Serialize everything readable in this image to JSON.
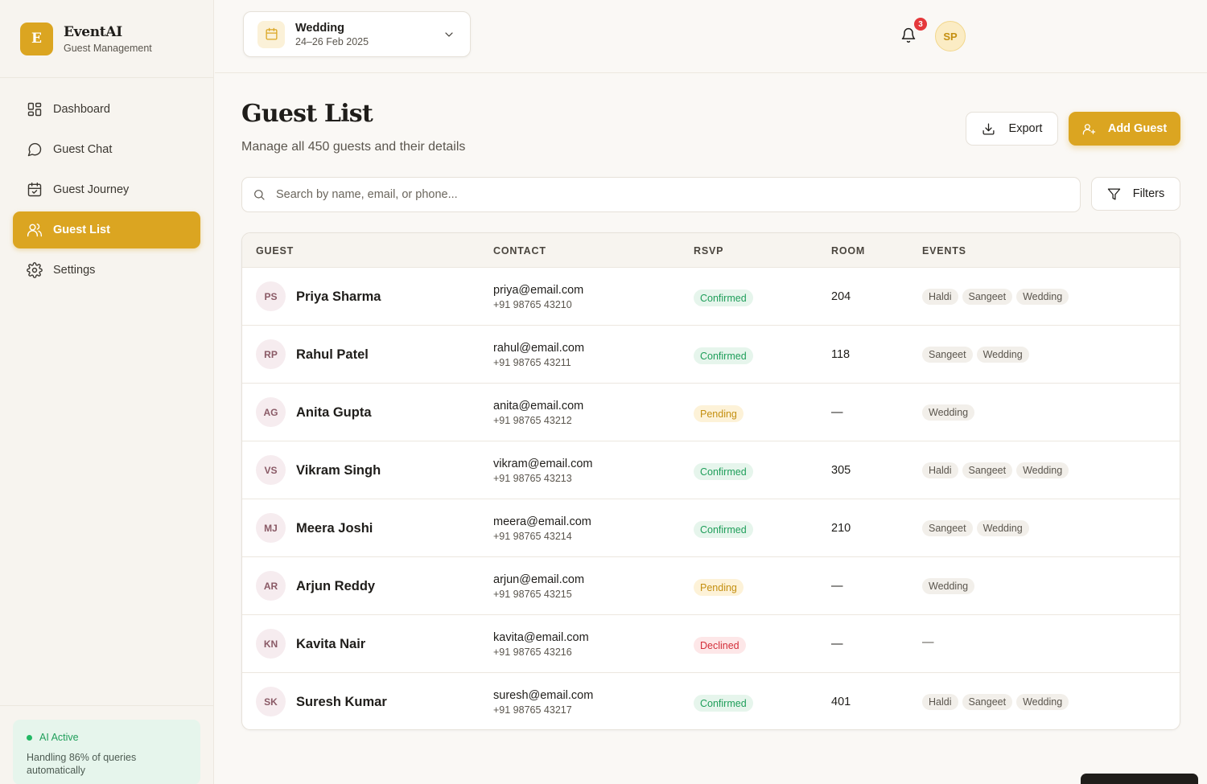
{
  "brand": {
    "logo_letter": "E",
    "name": "EventAI",
    "subtitle": "Guest Management"
  },
  "nav": [
    {
      "label": "Dashboard",
      "icon": "layout-grid-icon",
      "active": false
    },
    {
      "label": "Guest Chat",
      "icon": "chat-bubble-icon",
      "active": false
    },
    {
      "label": "Guest Journey",
      "icon": "calendar-check-icon",
      "active": false
    },
    {
      "label": "Guest List",
      "icon": "users-icon",
      "active": true
    },
    {
      "label": "Settings",
      "icon": "gear-icon",
      "active": false
    }
  ],
  "ai_status": {
    "label": "AI Active",
    "description": "Handling 86% of queries automatically"
  },
  "header": {
    "event": {
      "name": "Wedding",
      "dates": "24–26 Feb 2025"
    },
    "notifications_count": "3",
    "user_initials": "SP"
  },
  "page": {
    "title": "Guest List",
    "subtitle": "Manage all 450 guests and their details",
    "export_label": "Export",
    "add_label": "Add Guest",
    "search_placeholder": "Search by name, email, or phone...",
    "filters_label": "Filters"
  },
  "table": {
    "columns": [
      "GUEST",
      "CONTACT",
      "RSVP",
      "ROOM",
      "EVENTS"
    ],
    "rows": [
      {
        "initials": "PS",
        "name": "Priya Sharma",
        "email": "priya@email.com",
        "phone": "+91 98765 43210",
        "rsvp": "Confirmed",
        "room": "204",
        "events": [
          "Haldi",
          "Sangeet",
          "Wedding"
        ]
      },
      {
        "initials": "RP",
        "name": "Rahul Patel",
        "email": "rahul@email.com",
        "phone": "+91 98765 43211",
        "rsvp": "Confirmed",
        "room": "118",
        "events": [
          "Sangeet",
          "Wedding"
        ]
      },
      {
        "initials": "AG",
        "name": "Anita Gupta",
        "email": "anita@email.com",
        "phone": "+91 98765 43212",
        "rsvp": "Pending",
        "room": "—",
        "events": [
          "Wedding"
        ]
      },
      {
        "initials": "VS",
        "name": "Vikram Singh",
        "email": "vikram@email.com",
        "phone": "+91 98765 43213",
        "rsvp": "Confirmed",
        "room": "305",
        "events": [
          "Haldi",
          "Sangeet",
          "Wedding"
        ]
      },
      {
        "initials": "MJ",
        "name": "Meera Joshi",
        "email": "meera@email.com",
        "phone": "+91 98765 43214",
        "rsvp": "Confirmed",
        "room": "210",
        "events": [
          "Sangeet",
          "Wedding"
        ]
      },
      {
        "initials": "AR",
        "name": "Arjun Reddy",
        "email": "arjun@email.com",
        "phone": "+91 98765 43215",
        "rsvp": "Pending",
        "room": "—",
        "events": [
          "Wedding"
        ]
      },
      {
        "initials": "KN",
        "name": "Kavita Nair",
        "email": "kavita@email.com",
        "phone": "+91 98765 43216",
        "rsvp": "Declined",
        "room": "—",
        "events": []
      },
      {
        "initials": "SK",
        "name": "Suresh Kumar",
        "email": "suresh@email.com",
        "phone": "+91 98765 43217",
        "rsvp": "Confirmed",
        "room": "401",
        "events": [
          "Haldi",
          "Sangeet",
          "Wedding"
        ]
      }
    ],
    "empty_events": "—"
  },
  "colors": {
    "accent": "#dba521",
    "confirmed": "#1f9e5a",
    "pending": "#c48f10",
    "declined": "#d32f3a"
  }
}
